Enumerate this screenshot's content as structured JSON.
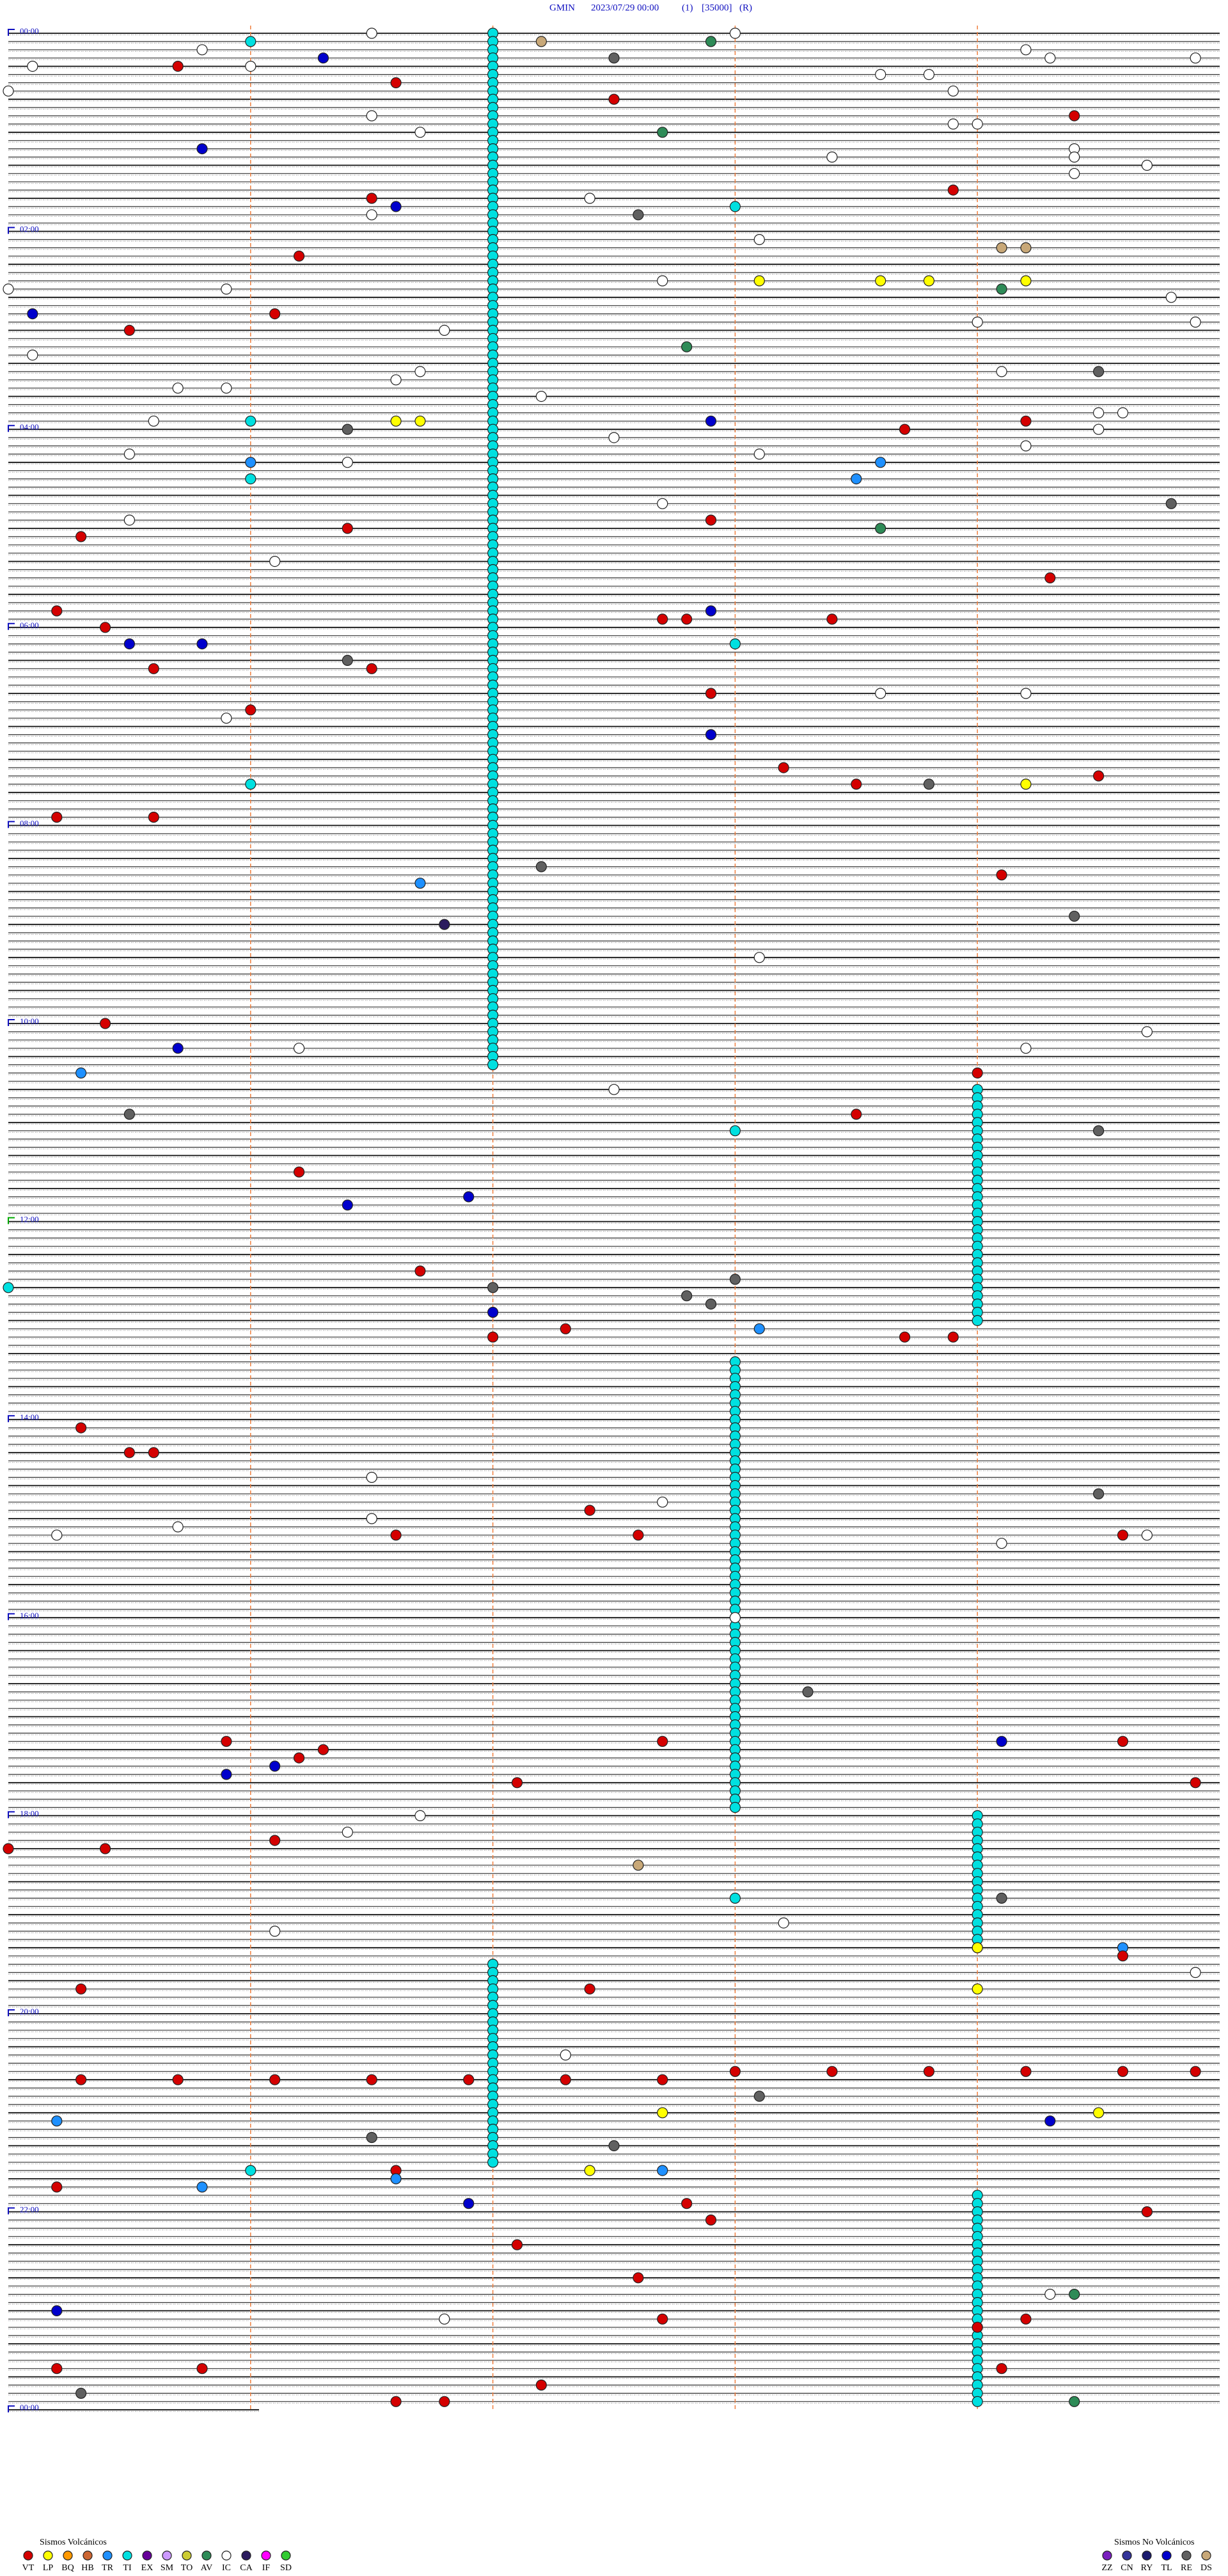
{
  "chart_data": {
    "type": "helicorder",
    "header": [
      "GMIN",
      "2023/07/29 00:00",
      "(1)",
      "[35000]",
      "(R)"
    ],
    "time_labels": [
      "00:00",
      "02:00",
      "04:00",
      "06:00",
      "08:00",
      "10:00",
      "12:00",
      "14:00",
      "16:00",
      "18:00",
      "20:00",
      "22:00",
      "00:00"
    ],
    "legend": {
      "volcanic": {
        "title": "Sismos Volcánicos",
        "classes": [
          {
            "code": "VT",
            "color": "#d40000"
          },
          {
            "code": "LP",
            "color": "#ffff00"
          },
          {
            "code": "BQ",
            "color": "#ff9900"
          },
          {
            "code": "HB",
            "color": "#cc6633"
          },
          {
            "code": "TR",
            "color": "#1e90ff"
          },
          {
            "code": "TI",
            "color": "#00e0e0"
          },
          {
            "code": "EX",
            "color": "#660099"
          },
          {
            "code": "SM",
            "color": "#cc99ff"
          },
          {
            "code": "TO",
            "color": "#cccc33"
          },
          {
            "code": "AV",
            "color": "#2e8b57"
          },
          {
            "code": "IC",
            "color": "#ffffff"
          },
          {
            "code": "CA",
            "color": "#2b1b5e"
          },
          {
            "code": "IF",
            "color": "#ff00ff"
          },
          {
            "code": "SD",
            "color": "#33cc33"
          }
        ]
      },
      "non_volcanic": {
        "title": "Sismos No Volcánicos",
        "classes": [
          {
            "code": "ZZ",
            "color": "#7a1fbf"
          },
          {
            "code": "CN",
            "color": "#333399"
          },
          {
            "code": "RY",
            "color": "#1a1a6e"
          },
          {
            "code": "TL",
            "color": "#0000cc"
          },
          {
            "code": "RE",
            "color": "#606060"
          },
          {
            "code": "DS",
            "color": "#c8a878"
          }
        ]
      }
    },
    "tremor_episodes": [
      {
        "class": "TI",
        "minutes": [
          2.0,
          627.0
        ]
      },
      {
        "class": "TI",
        "minutes": [
          644.0,
          784.0
        ]
      },
      {
        "class": "TI",
        "minutes": [
          808.0,
          1078.0
        ]
      },
      {
        "class": "TI",
        "minutes": [
          1084.0,
          1164.0
        ]
      },
      {
        "class": "TI",
        "minutes": [
          1172.0,
          1292.0
        ]
      },
      {
        "class": "TI",
        "minutes": [
          1314.0,
          1439.0
        ]
      }
    ],
    "events": [
      [
        1.5,
        "IC"
      ],
      [
        7.2,
        "DS"
      ],
      [
        7.9,
        "AV"
      ],
      [
        3.0,
        "IC"
      ],
      [
        6.0,
        "TI"
      ],
      [
        10.8,
        "IC"
      ],
      [
        16.3,
        "TL"
      ],
      [
        17.5,
        "RE"
      ],
      [
        20.7,
        "VT"
      ],
      [
        20.1,
        "IC"
      ],
      [
        21.0,
        "IC"
      ],
      [
        31.6,
        "VT"
      ],
      [
        42.5,
        "VT"
      ],
      [
        54.4,
        "VT"
      ],
      [
        62.7,
        "AV"
      ],
      [
        70.8,
        "TL"
      ],
      [
        78.4,
        "IC"
      ],
      [
        98.9,
        "VT"
      ],
      [
        101.5,
        "VT"
      ],
      [
        106.6,
        "TL"
      ],
      [
        112.6,
        "RE"
      ],
      [
        108.0,
        "TI"
      ],
      [
        136.2,
        "VT"
      ],
      [
        153.1,
        "LP"
      ],
      [
        153.6,
        "LP"
      ],
      [
        153.8,
        "LP"
      ],
      [
        154.2,
        "LP"
      ],
      [
        159.1,
        "AV"
      ],
      [
        171.1,
        "VT"
      ],
      [
        170.1,
        "TL"
      ],
      [
        180.5,
        "VT"
      ],
      [
        192.8,
        "AV"
      ],
      [
        209.5,
        "RE"
      ],
      [
        236.6,
        "LP"
      ],
      [
        236.7,
        "LP"
      ],
      [
        237.9,
        "TL"
      ],
      [
        236.0,
        "TI"
      ],
      [
        241.4,
        "RE"
      ],
      [
        243.7,
        "VT"
      ],
      [
        239.2,
        "VT"
      ],
      [
        261.0,
        "TR"
      ],
      [
        263.6,
        "TR"
      ],
      [
        273.5,
        "TR"
      ],
      [
        271.0,
        "TI"
      ],
      [
        305.3,
        "VT"
      ],
      [
        301.4,
        "VT"
      ],
      [
        297.9,
        "VT"
      ],
      [
        303.6,
        "AV"
      ],
      [
        289.8,
        "RE"
      ],
      [
        334.3,
        "VT"
      ],
      [
        350.2,
        "VT"
      ],
      [
        360.4,
        "VT"
      ],
      [
        357.7,
        "VT"
      ],
      [
        357.8,
        "VT"
      ],
      [
        352.9,
        "TL"
      ],
      [
        358.4,
        "VT"
      ],
      [
        370.5,
        "TL"
      ],
      [
        370.8,
        "TL"
      ],
      [
        373.0,
        "TI"
      ],
      [
        385.6,
        "VT"
      ],
      [
        386.5,
        "VT"
      ],
      [
        381.4,
        "RE"
      ],
      [
        402.9,
        "VT"
      ],
      [
        411.0,
        "VT"
      ],
      [
        427.9,
        "TL"
      ],
      [
        448.2,
        "VT"
      ],
      [
        458.5,
        "VT"
      ],
      [
        458.8,
        "RE"
      ],
      [
        459.2,
        "LP"
      ],
      [
        454.5,
        "VT"
      ],
      [
        456.0,
        "TI"
      ],
      [
        475.2,
        "VT"
      ],
      [
        475.6,
        "VT"
      ],
      [
        507.2,
        "RE"
      ],
      [
        514.1,
        "VT"
      ],
      [
        516.7,
        "TR"
      ],
      [
        541.8,
        "CA"
      ],
      [
        539.4,
        "RE"
      ],
      [
        600.4,
        "VT"
      ],
      [
        615.7,
        "TL"
      ],
      [
        630.3,
        "TR"
      ],
      [
        634.0,
        "VT"
      ],
      [
        655.5,
        "RE"
      ],
      [
        658.5,
        "VT"
      ],
      [
        669.5,
        "RE"
      ],
      [
        668.0,
        "TI"
      ],
      [
        691.2,
        "VT"
      ],
      [
        706.9,
        "TL"
      ],
      [
        711.4,
        "TL"
      ],
      [
        751.7,
        "VT"
      ],
      [
        762.0,
        "RE"
      ],
      [
        758.0,
        "RE"
      ],
      [
        767.8,
        "RE"
      ],
      [
        772.9,
        "RE"
      ],
      [
        777.0,
        "TL"
      ],
      [
        760.0,
        "TI"
      ],
      [
        792.0,
        "VT"
      ],
      [
        787.3,
        "VT"
      ],
      [
        788.1,
        "TR"
      ],
      [
        793.7,
        "VT"
      ],
      [
        793.9,
        "VT"
      ],
      [
        845.3,
        "VT"
      ],
      [
        860.5,
        "VT"
      ],
      [
        860.6,
        "VT"
      ],
      [
        889.5,
        "RE"
      ],
      [
        897.4,
        "VT"
      ],
      [
        911.6,
        "VT"
      ],
      [
        912.6,
        "VT"
      ],
      [
        914.6,
        "VT"
      ],
      [
        1008.3,
        "RE"
      ],
      [
        1035.9,
        "VT"
      ],
      [
        1037.7,
        "VT"
      ],
      [
        1041.3,
        "VT"
      ],
      [
        1039.1,
        "TL"
      ],
      [
        1039.6,
        "VT"
      ],
      [
        1046.2,
        "VT"
      ],
      [
        1051.1,
        "TL"
      ],
      [
        1055.9,
        "TL"
      ],
      [
        1062.1,
        "VT"
      ],
      [
        1064.9,
        "VT"
      ],
      [
        1100.4,
        "VT"
      ],
      [
        1096.1,
        "VT"
      ],
      [
        1100.0,
        "VT"
      ],
      [
        1112.6,
        "DS"
      ],
      [
        1134.1,
        "RE"
      ],
      [
        1133.0,
        "TI"
      ],
      [
        1164.6,
        "TR"
      ],
      [
        1169.6,
        "VT"
      ],
      [
        1164.0,
        "LP"
      ],
      [
        1189.0,
        "LP"
      ],
      [
        1185.3,
        "VT"
      ],
      [
        1187.4,
        "VT"
      ],
      [
        1240.3,
        "VT"
      ],
      [
        1240.7,
        "VT"
      ],
      [
        1241.1,
        "VT"
      ],
      [
        1241.5,
        "VT"
      ],
      [
        1241.9,
        "VT"
      ],
      [
        1242.3,
        "VT"
      ],
      [
        1242.7,
        "VT"
      ],
      [
        1238.0,
        "VT"
      ],
      [
        1238.4,
        "VT"
      ],
      [
        1238.8,
        "VT"
      ],
      [
        1239.2,
        "VT"
      ],
      [
        1239.6,
        "VT"
      ],
      [
        1239.9,
        "VT"
      ],
      [
        1253.1,
        "RE"
      ],
      [
        1265.2,
        "TR"
      ],
      [
        1262.7,
        "LP"
      ],
      [
        1264.5,
        "LP"
      ],
      [
        1269.3,
        "TL"
      ],
      [
        1276.5,
        "RE"
      ],
      [
        1282.5,
        "RE"
      ],
      [
        1296.6,
        "VT"
      ],
      [
        1301.6,
        "TR"
      ],
      [
        1297.4,
        "LP"
      ],
      [
        1297.7,
        "TR"
      ],
      [
        1296.0,
        "TI"
      ],
      [
        1305.2,
        "VT"
      ],
      [
        1305.8,
        "TR"
      ],
      [
        1316.9,
        "TL"
      ],
      [
        1317.8,
        "VT"
      ],
      [
        1324.7,
        "VT"
      ],
      [
        1327.9,
        "VT"
      ],
      [
        1342.1,
        "VT"
      ],
      [
        1362.6,
        "VT"
      ],
      [
        1374.4,
        "AV"
      ],
      [
        1380.2,
        "TL"
      ],
      [
        1387.7,
        "VT"
      ],
      [
        1389.2,
        "VT"
      ],
      [
        1394.0,
        "VT"
      ],
      [
        1415.2,
        "VT"
      ],
      [
        1415.8,
        "VT"
      ],
      [
        1419.1,
        "VT"
      ],
      [
        1430.3,
        "RE"
      ],
      [
        1427.2,
        "VT"
      ],
      [
        1436.6,
        "VT"
      ],
      [
        1436.8,
        "VT"
      ],
      [
        1439.4,
        "AV"
      ],
      [
        128.1,
        "IC"
      ],
      [
        155.9,
        "IC"
      ],
      [
        152.7,
        "IC"
      ],
      [
        181.8,
        "IC"
      ],
      [
        206.7,
        "IC"
      ],
      [
        211.6,
        "IC"
      ],
      [
        215.7,
        "IC"
      ],
      [
        215.9,
        "IC"
      ],
      [
        235.6,
        "IC"
      ],
      [
        247.5,
        "IC"
      ],
      [
        258.1,
        "IC"
      ],
      [
        255.5,
        "IC"
      ],
      [
        261.4,
        "IC"
      ],
      [
        287.7,
        "IC"
      ],
      [
        295.5,
        "IC"
      ],
      [
        321.1,
        "IC"
      ],
      [
        403.6,
        "IC"
      ],
      [
        404.2,
        "IC"
      ],
      [
        415.9,
        "IC"
      ],
      [
        563.1,
        "IC"
      ],
      [
        616.2,
        "IC"
      ],
      [
        619.2,
        "IC"
      ],
      [
        609.7,
        "IC"
      ],
      [
        642.5,
        "IC"
      ],
      [
        876.5,
        "IC"
      ],
      [
        892.7,
        "IC"
      ],
      [
        901.5,
        "IC"
      ],
      [
        905.7,
        "IC"
      ],
      [
        910.2,
        "IC"
      ],
      [
        919.1,
        "IC"
      ],
      [
        914.7,
        "IC"
      ],
      [
        963.0,
        "IC"
      ],
      [
        1081.7,
        "IC"
      ],
      [
        1091.4,
        "IC"
      ],
      [
        1148.2,
        "IC"
      ],
      [
        1151.1,
        "IC"
      ],
      [
        1179.9,
        "IC"
      ],
      [
        1227.3,
        "IC"
      ],
      [
        1386.8,
        "IC"
      ],
      [
        1374.3,
        "IC"
      ],
      [
        28.6,
        "IC"
      ],
      [
        28.8,
        "IC"
      ],
      [
        38.9,
        "IC"
      ],
      [
        14.2,
        "IC"
      ],
      [
        19.3,
        "IC"
      ],
      [
        19.9,
        "IC"
      ],
      [
        35.0,
        "IC"
      ],
      [
        51.5,
        "IC"
      ],
      [
        58.9,
        "IC"
      ],
      [
        59.0,
        "IC"
      ],
      [
        61.7,
        "IC"
      ],
      [
        74.4,
        "IC"
      ],
      [
        79.4,
        "IC"
      ],
      [
        84.7,
        "IC"
      ],
      [
        89.4,
        "IC"
      ],
      [
        102.4,
        "IC"
      ],
      [
        111.5,
        "IC"
      ],
      [
        134.1,
        "DS"
      ],
      [
        134.2,
        "DS"
      ],
      [
        164.8,
        "IC"
      ],
      [
        155.0,
        "IC"
      ],
      [
        179.9,
        "IC"
      ],
      [
        179.0,
        "IC"
      ],
      [
        195.1,
        "IC"
      ],
      [
        209.1,
        "IC"
      ],
      [
        222.2,
        "IC"
      ],
      [
        234.5,
        "IC"
      ],
      [
        234.6,
        "IC"
      ],
      [
        244.5,
        "IC"
      ],
      [
        254.2,
        "IC"
      ]
    ]
  }
}
